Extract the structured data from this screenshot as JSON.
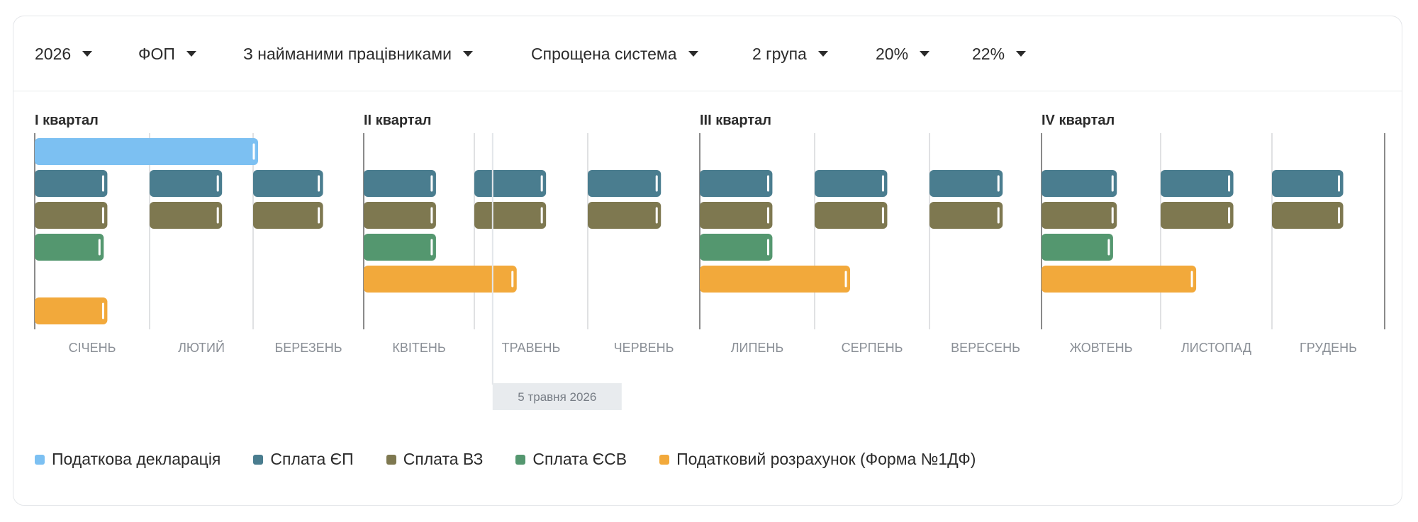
{
  "filters": [
    {
      "label": "2026"
    },
    {
      "label": "ФОП"
    },
    {
      "label": "З найманими працівниками"
    },
    {
      "label": "Спрощена система"
    },
    {
      "label": "2 група"
    },
    {
      "label": "20%"
    },
    {
      "label": "22%"
    }
  ],
  "colors": {
    "declaration": "#7cc0f2",
    "ep": "#4a7d8f",
    "vz": "#7e7850",
    "esv": "#54976f",
    "form1df": "#f2a93b"
  },
  "chart_data": {
    "type": "bar",
    "quarters": [
      "I квартал",
      "II квартал",
      "III квартал",
      "IV квартал"
    ],
    "months": [
      "СІЧЕНЬ",
      "ЛЮТИЙ",
      "БЕРЕЗЕНЬ",
      "КВІТЕНЬ",
      "ТРАВЕНЬ",
      "ЧЕРВЕНЬ",
      "ЛИПЕНЬ",
      "СЕРПЕНЬ",
      "ВЕРЕСЕНЬ",
      "ЖОВТЕНЬ",
      "ЛИСТОПАД",
      "ГРУДЕНЬ"
    ],
    "series": [
      {
        "key": "declaration",
        "name": "Податкова декларація",
        "color": "#7cc0f2",
        "deadlines": [
          {
            "month": 1,
            "day": 0
          },
          {
            "month": 2,
            "day": 0
          },
          {
            "month": 3,
            "day": 0
          },
          {
            "month": 3,
            "day": 1
          },
          {
            "month": 3,
            "day": 1
          }
        ]
      },
      {
        "key": "ep",
        "name": "Сплата ЄП",
        "color": "#4a7d8f",
        "deadlines": [
          {
            "month": 1,
            "day": 20
          },
          {
            "month": 2,
            "day": 20
          },
          {
            "month": 3,
            "day": 20
          },
          {
            "month": 4,
            "day": 20
          },
          {
            "month": 5,
            "day": 20
          },
          {
            "month": 6,
            "day": 20
          },
          {
            "month": 7,
            "day": 20
          },
          {
            "month": 8,
            "day": 20
          },
          {
            "month": 9,
            "day": 20
          },
          {
            "month": 10,
            "day": 20
          },
          {
            "month": 11,
            "day": 20
          },
          {
            "month": 12,
            "day": 20
          }
        ]
      },
      {
        "key": "vz",
        "name": "Сплата ВЗ",
        "color": "#7e7850",
        "deadlines": [
          {
            "month": 1,
            "day": 20
          },
          {
            "month": 2,
            "day": 20
          },
          {
            "month": 3,
            "day": 20
          },
          {
            "month": 4,
            "day": 20
          },
          {
            "month": 5,
            "day": 20
          },
          {
            "month": 6,
            "day": 20
          },
          {
            "month": 7,
            "day": 20
          },
          {
            "month": 8,
            "day": 20
          },
          {
            "month": 9,
            "day": 20
          },
          {
            "month": 10,
            "day": 20
          },
          {
            "month": 11,
            "day": 20
          },
          {
            "month": 12,
            "day": 20
          }
        ]
      },
      {
        "key": "esv",
        "name": "Сплата ЄСВ",
        "color": "#54976f",
        "deadlines": [
          {
            "month": 1,
            "day": 19
          },
          {
            "month": 4,
            "day": 20
          },
          {
            "month": 7,
            "day": 20
          },
          {
            "month": 10,
            "day": 19
          }
        ]
      },
      {
        "key": "form1df",
        "name": "Податковий розрахунок (Форма №1ДФ)",
        "color": "#f2a93b",
        "deadlines": [
          {
            "month": 1,
            "day": 20
          },
          {
            "month": 5,
            "day": 11
          },
          {
            "month": 8,
            "day": 9
          },
          {
            "month": 11,
            "day": 9
          }
        ]
      }
    ],
    "today_label": "5 травня 2026",
    "today": {
      "month": 5,
      "day": 5
    },
    "legend_placement": "bottom-left"
  }
}
